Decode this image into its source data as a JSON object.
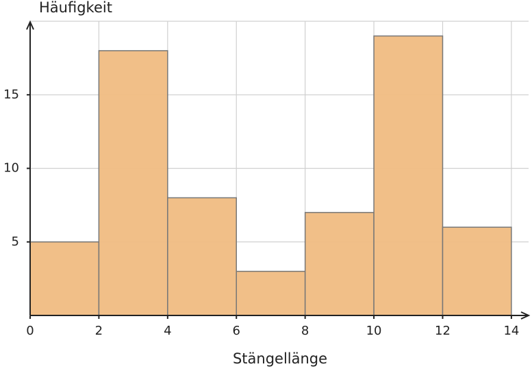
{
  "chart_data": {
    "type": "histogram",
    "x_label": "Stängellänge",
    "y_label": "Häufigkeit",
    "bins": [
      0,
      2,
      4,
      6,
      8,
      10,
      12,
      14
    ],
    "values": [
      5,
      18,
      8,
      3,
      7,
      19,
      6
    ],
    "color": "#f0bc82",
    "edge_color": "#777777",
    "xlim": [
      0,
      14.5
    ],
    "ylim": [
      0,
      20
    ],
    "xticks": [
      0,
      2,
      4,
      6,
      8,
      10,
      12,
      14
    ],
    "yticks": [
      5,
      10,
      15
    ],
    "grid": true
  }
}
